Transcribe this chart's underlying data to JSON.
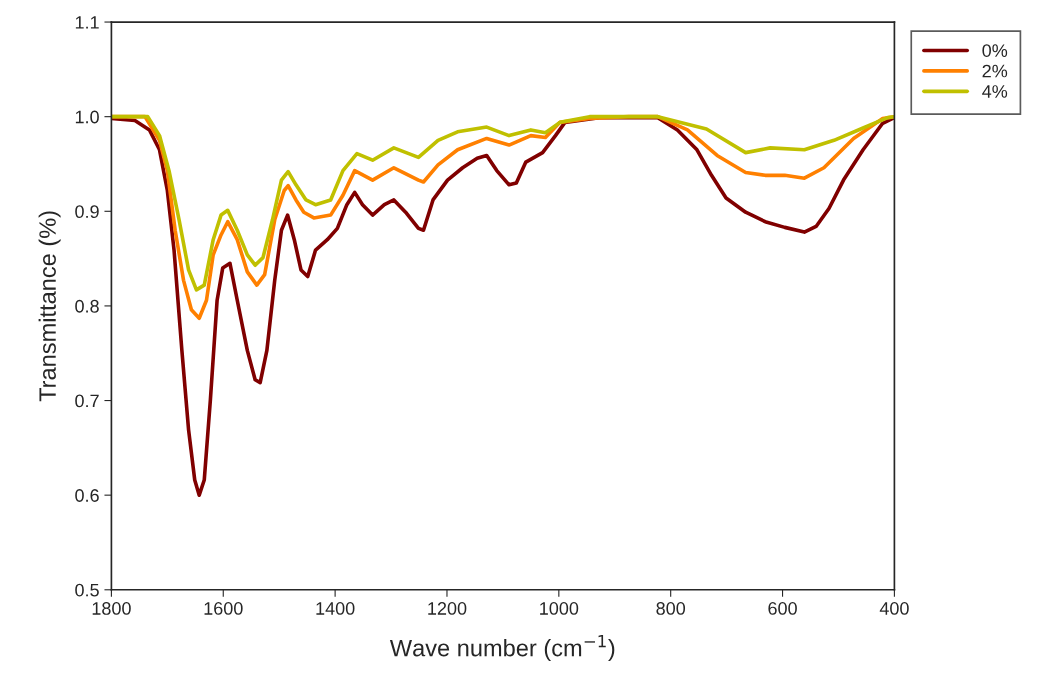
{
  "chart_data": {
    "type": "line",
    "xlabel": "Wave number (cm$^{−1}$)",
    "ylabel": "Transmittance (%)",
    "xlim": [
      1800,
      400
    ],
    "xticks": [
      1800,
      1600,
      1400,
      1200,
      1000,
      800,
      600,
      400
    ],
    "ylim": [
      0.5,
      1.1
    ],
    "yticks": [
      {
        "value": 0.5,
        "label": "0.5"
      },
      {
        "value": 0.6,
        "label": "0.6"
      },
      {
        "value": 0.7,
        "label": "0.7"
      },
      {
        "value": 0.8,
        "label": "0.8"
      },
      {
        "value": 0.9,
        "label": "0.9"
      },
      {
        "value": 1.0,
        "label": "1.0"
      },
      {
        "value": 1.1,
        "label": "1.1"
      }
    ],
    "grid": false,
    "legend": "top right",
    "marker": "none",
    "line_style": "solid",
    "series": [
      {
        "name": "0%",
        "color": "#800000",
        "x": [
          1800,
          1758,
          1732,
          1714,
          1700,
          1688,
          1674,
          1662,
          1651,
          1643,
          1634,
          1623,
          1611,
          1601,
          1588,
          1575,
          1557,
          1543,
          1534,
          1522,
          1508,
          1496,
          1485,
          1473,
          1461,
          1449,
          1435,
          1414,
          1396,
          1379,
          1365,
          1351,
          1333,
          1312,
          1295,
          1274,
          1251,
          1242,
          1225,
          1199,
          1172,
          1146,
          1129,
          1111,
          1089,
          1076,
          1059,
          1029,
          1006,
          989,
          928,
          875,
          823,
          788,
          753,
          727,
          701,
          666,
          631,
          596,
          561,
          540,
          517,
          491,
          456,
          421,
          400
        ],
        "values": [
          0.998,
          0.996,
          0.986,
          0.965,
          0.922,
          0.859,
          0.753,
          0.669,
          0.616,
          0.6,
          0.616,
          0.701,
          0.806,
          0.84,
          0.845,
          0.806,
          0.753,
          0.722,
          0.719,
          0.753,
          0.827,
          0.88,
          0.896,
          0.87,
          0.838,
          0.831,
          0.859,
          0.87,
          0.882,
          0.907,
          0.92,
          0.907,
          0.896,
          0.907,
          0.912,
          0.899,
          0.882,
          0.88,
          0.912,
          0.933,
          0.946,
          0.956,
          0.959,
          0.943,
          0.928,
          0.93,
          0.952,
          0.962,
          0.98,
          0.994,
          0.999,
          0.999,
          0.999,
          0.986,
          0.965,
          0.938,
          0.914,
          0.899,
          0.889,
          0.883,
          0.878,
          0.884,
          0.903,
          0.933,
          0.965,
          0.993,
          0.999
        ]
      },
      {
        "name": "2%",
        "color": "#ff8000",
        "x": [
          1800,
          1740,
          1714,
          1700,
          1686,
          1671,
          1657,
          1643,
          1630,
          1618,
          1604,
          1592,
          1575,
          1557,
          1540,
          1526,
          1508,
          1491,
          1484,
          1470,
          1456,
          1438,
          1408,
          1386,
          1365,
          1333,
          1295,
          1251,
          1242,
          1216,
          1181,
          1129,
          1089,
          1050,
          1024,
          998,
          945,
          875,
          823,
          770,
          717,
          666,
          631,
          596,
          561,
          526,
          473,
          421,
          400
        ],
        "values": [
          1.0,
          1.0,
          0.975,
          0.943,
          0.88,
          0.827,
          0.796,
          0.787,
          0.806,
          0.854,
          0.875,
          0.889,
          0.87,
          0.836,
          0.822,
          0.833,
          0.891,
          0.922,
          0.927,
          0.912,
          0.899,
          0.893,
          0.896,
          0.917,
          0.943,
          0.933,
          0.946,
          0.933,
          0.931,
          0.949,
          0.965,
          0.977,
          0.97,
          0.98,
          0.978,
          0.994,
          0.998,
          1.0,
          1.0,
          0.986,
          0.959,
          0.941,
          0.938,
          0.938,
          0.935,
          0.946,
          0.977,
          0.998,
          1.0
        ]
      },
      {
        "name": "4%",
        "color": "#c0c000",
        "x": [
          1800,
          1735,
          1714,
          1697,
          1679,
          1662,
          1648,
          1634,
          1618,
          1604,
          1592,
          1575,
          1557,
          1543,
          1529,
          1512,
          1496,
          1484,
          1470,
          1452,
          1435,
          1408,
          1386,
          1361,
          1333,
          1295,
          1251,
          1216,
          1181,
          1129,
          1089,
          1050,
          1024,
          998,
          945,
          823,
          736,
          666,
          622,
          561,
          508,
          456,
          412,
          400
        ],
        "values": [
          1.0,
          1.0,
          0.98,
          0.943,
          0.891,
          0.838,
          0.817,
          0.822,
          0.87,
          0.896,
          0.901,
          0.88,
          0.854,
          0.843,
          0.851,
          0.891,
          0.933,
          0.942,
          0.928,
          0.912,
          0.907,
          0.912,
          0.943,
          0.961,
          0.954,
          0.967,
          0.957,
          0.975,
          0.984,
          0.989,
          0.98,
          0.986,
          0.983,
          0.994,
          1.0,
          1.0,
          0.987,
          0.962,
          0.967,
          0.965,
          0.975,
          0.988,
          0.999,
          1.0
        ]
      }
    ]
  }
}
